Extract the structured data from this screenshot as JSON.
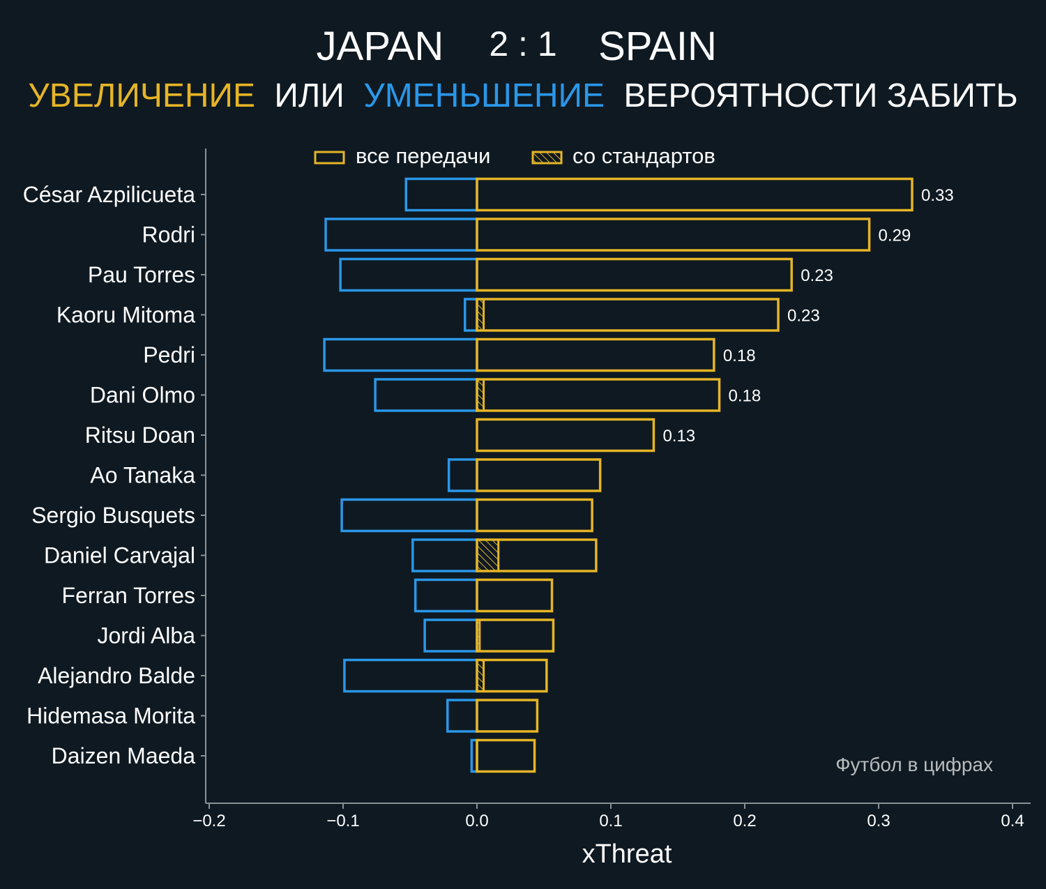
{
  "header": {
    "team_home": "JAPAN",
    "score": "2 : 1",
    "team_away": "SPAIN",
    "subtitle_increase": "УВЕЛИЧЕНИЕ",
    "subtitle_or": "ИЛИ",
    "subtitle_decrease": "УМЕНЬШЕНИЕ",
    "subtitle_rest": "ВЕРОЯТНОСТИ ЗАБИТЬ"
  },
  "colors": {
    "background": "#0f1921",
    "increase": "#e5b526",
    "decrease": "#2a97e8",
    "text": "#ffffff",
    "axis": "#8a9296",
    "watermark": "#b9bdbf"
  },
  "watermark": "Футбол в цифрах",
  "chart_data": {
    "type": "bar",
    "orientation": "horizontal",
    "title": "JAPAN 2 : 1 SPAIN",
    "subtitle": "УВЕЛИЧЕНИЕ ИЛИ УМЕНЬШЕНИЕ ВЕРОЯТНОСТИ ЗАБИТЬ",
    "xlabel": "xThreat",
    "ylabel": "",
    "xlim": [
      -0.2,
      0.4
    ],
    "xticks": [
      -0.2,
      -0.1,
      0.0,
      0.1,
      0.2,
      0.3,
      0.4
    ],
    "xtick_labels": [
      "−0.2",
      "−0.1",
      "0.0",
      "0.1",
      "0.2",
      "0.3",
      "0.4"
    ],
    "grid": false,
    "legend": {
      "placement": "top-center",
      "entries": [
        "все передачи",
        "со стандартов"
      ]
    },
    "categories": [
      "César Azpilicueta",
      "Rodri",
      "Pau Torres",
      "Kaoru Mitoma",
      "Pedri",
      "Dani Olmo",
      "Ritsu Doan",
      "Ao Tanaka",
      "Sergio Busquets",
      "Daniel Carvajal",
      "Ferran Torres",
      "Jordi Alba",
      "Alejandro Balde",
      "Hidemasa Morita",
      "Daizen Maeda"
    ],
    "series": [
      {
        "name": "все передачи (увеличение)",
        "values": [
          0.325,
          0.293,
          0.235,
          0.225,
          0.177,
          0.181,
          0.132,
          0.092,
          0.086,
          0.089,
          0.056,
          0.057,
          0.052,
          0.045,
          0.043
        ]
      },
      {
        "name": "все передачи (уменьшение)",
        "values": [
          -0.053,
          -0.113,
          -0.102,
          -0.009,
          -0.114,
          -0.076,
          0.0,
          -0.021,
          -0.101,
          -0.048,
          -0.046,
          -0.039,
          -0.099,
          -0.022,
          -0.004
        ]
      },
      {
        "name": "со стандартов",
        "values": [
          0.0,
          0.0,
          0.0,
          0.005,
          0.0,
          0.005,
          0.0,
          0.0,
          0.0,
          0.016,
          0.0,
          0.002,
          0.005,
          0.0,
          0.0
        ]
      }
    ],
    "data_labels": [
      "0.33",
      "0.29",
      "0.23",
      "0.23",
      "0.18",
      "0.18",
      "0.13"
    ]
  }
}
